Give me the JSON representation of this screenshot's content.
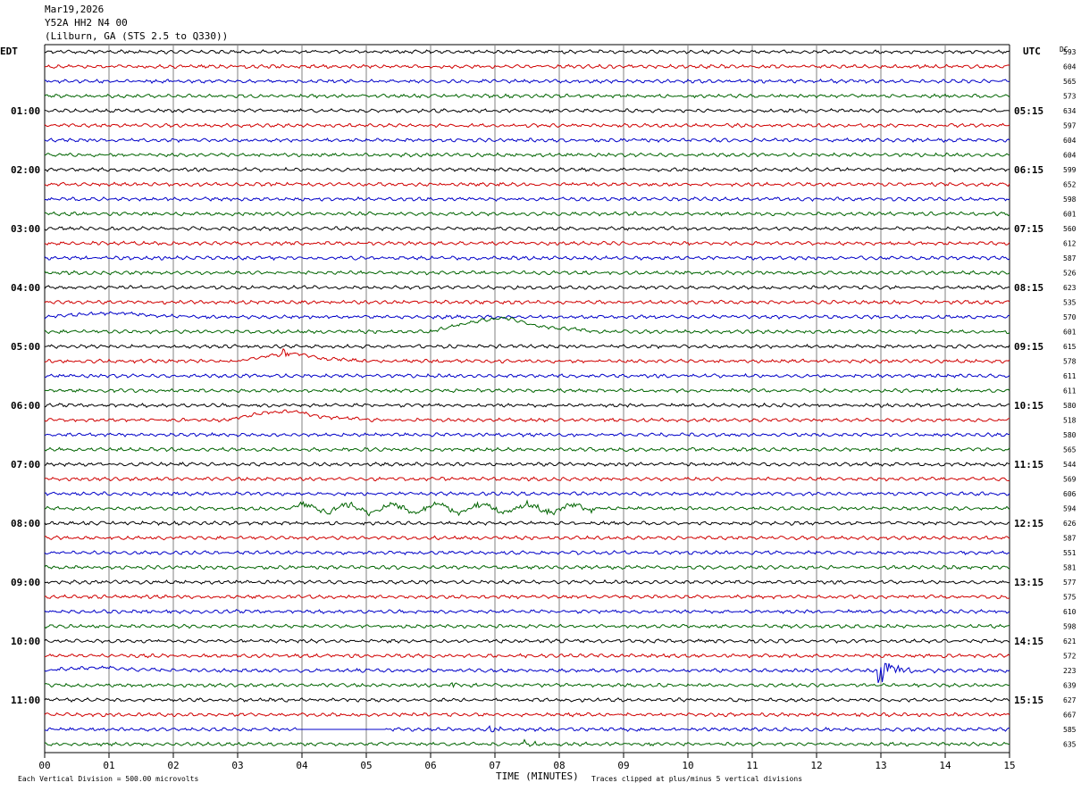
{
  "header": {
    "date": "Mar19,2026",
    "station": "Y52A HH2 N4 00",
    "location": "(Lilburn, GA (STS 2.5 to Q330))",
    "left_tz": "EDT",
    "right_tz": "UTC",
    "dc_label": "DC"
  },
  "footer": {
    "xlabel": "TIME (MINUTES)",
    "scale_note": "Each Vertical Division =  500.00 microvolts",
    "clip_note": "Traces clipped at plus/minus 5 vertical divisions"
  },
  "colors": {
    "trace_cycle": [
      "#000000",
      "#d00000",
      "#0000c8",
      "#006400"
    ],
    "grid": "#808080"
  },
  "chart_data": {
    "type": "line",
    "description_kind": "helicorder",
    "xlim": [
      0,
      15
    ],
    "x_ticks": [
      "00",
      "01",
      "02",
      "03",
      "04",
      "05",
      "06",
      "07",
      "08",
      "09",
      "10",
      "11",
      "12",
      "13",
      "14",
      "15"
    ],
    "rows_per_hour": 4,
    "row_count": 48,
    "left_hour_labels": [
      "01:00",
      "02:00",
      "03:00",
      "04:00",
      "05:00",
      "06:00",
      "07:00",
      "08:00",
      "09:00",
      "10:00",
      "11:00"
    ],
    "right_hour_labels": [
      "05:15",
      "06:15",
      "07:15",
      "08:15",
      "09:15",
      "10:15",
      "11:15",
      "12:15",
      "13:15",
      "14:15",
      "15:15"
    ],
    "dc_offsets": [
      "593",
      "604",
      "565",
      "573",
      "634",
      "597",
      "604",
      "604",
      "599",
      "652",
      "598",
      "601",
      "560",
      "612",
      "587",
      "526",
      "623",
      "535",
      "570",
      "601",
      "615",
      "578",
      "611",
      "611",
      "580",
      "518",
      "580",
      "565",
      "544",
      "569",
      "606",
      "594",
      "626",
      "587",
      "551",
      "581",
      "577",
      "575",
      "610",
      "598",
      "621",
      "572",
      "223",
      "639",
      "627",
      "667",
      "585",
      "635"
    ],
    "events": [
      {
        "row": 18,
        "type": "slow_wave",
        "start_min": 0.0,
        "end_min": 2.5,
        "amplitude": 0.25
      },
      {
        "row": 19,
        "type": "slow_wave",
        "start_min": 6.0,
        "end_min": 8.5,
        "amplitude": 0.9
      },
      {
        "row": 21,
        "type": "slow_wave",
        "start_min": 3.0,
        "end_min": 4.9,
        "amplitude": 0.5
      },
      {
        "row": 21,
        "type": "burst",
        "start_min": 3.7,
        "end_min": 4.0,
        "amplitude": 0.35
      },
      {
        "row": 25,
        "type": "slow_wave",
        "start_min": 2.8,
        "end_min": 5.0,
        "amplitude": 0.6
      },
      {
        "row": 31,
        "type": "noisy",
        "start_min": 3.8,
        "end_min": 8.5,
        "amplitude": 0.45
      },
      {
        "row": 42,
        "type": "slow_wave",
        "start_min": 0.0,
        "end_min": 2.0,
        "amplitude": 0.2
      },
      {
        "row": 42,
        "type": "burst",
        "start_min": 12.95,
        "end_min": 13.9,
        "amplitude": 0.95
      },
      {
        "row": 43,
        "type": "burst",
        "start_min": 6.3,
        "end_min": 6.6,
        "amplitude": 0.35
      },
      {
        "row": 46,
        "type": "gap",
        "start_min": 3.9,
        "end_min": 5.3,
        "amplitude": 0
      },
      {
        "row": 46,
        "type": "burst",
        "start_min": 6.9,
        "end_min": 7.3,
        "amplitude": 0.35
      },
      {
        "row": 47,
        "type": "burst",
        "start_min": 7.4,
        "end_min": 7.9,
        "amplitude": 0.35
      }
    ]
  }
}
